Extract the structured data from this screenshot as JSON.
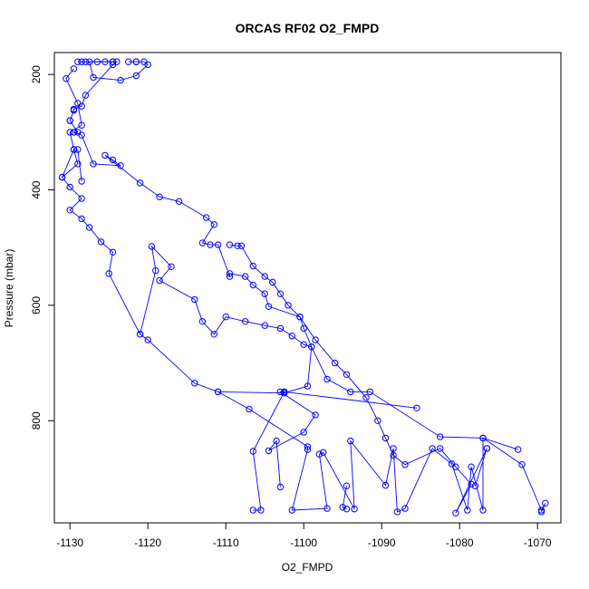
{
  "chart_data": {
    "type": "scatter",
    "title": "ORCAS RF02 O2_FMPD",
    "xlabel": "O2_FMPD",
    "ylabel": "Pressure (mbar)",
    "xlim": [
      -1132,
      -1067
    ],
    "ylim": [
      977,
      162
    ],
    "y_axis_inverted": true,
    "x_ticks": [
      -1130,
      -1120,
      -1110,
      -1100,
      -1090,
      -1080,
      -1070
    ],
    "y_ticks": [
      200,
      400,
      600,
      800
    ],
    "grid": false,
    "color": "#0000ff",
    "marker": "open-circle",
    "series": [
      {
        "values": [
          [
            -1129.5,
            190
          ],
          [
            -1130.5,
            207
          ],
          [
            -1129,
            250
          ],
          [
            -1128.5,
            288
          ],
          [
            -1130,
            300
          ],
          [
            -1129.5,
            330
          ],
          [
            -1129,
            355
          ],
          [
            -1131,
            378
          ],
          [
            -1130,
            395
          ],
          [
            -1128.5,
            415
          ],
          [
            -1130,
            435
          ],
          [
            -1128.5,
            450
          ],
          [
            -1127.5,
            465
          ],
          [
            -1126,
            490
          ],
          [
            -1124.5,
            508
          ],
          [
            -1125,
            545
          ],
          [
            -1121,
            650
          ],
          [
            -1120,
            660
          ],
          [
            -1114,
            735
          ],
          [
            -1111,
            750
          ],
          [
            -1107,
            780
          ],
          [
            -1099.5,
            845
          ],
          [
            -1099.5,
            850
          ],
          [
            -1101.5,
            955
          ],
          [
            -1097,
            952
          ],
          [
            -1098,
            858
          ],
          [
            -1097.5,
            855
          ],
          [
            -1093.5,
            953
          ],
          [
            -1094,
            835
          ],
          [
            -1089.5,
            912
          ],
          [
            -1088.5,
            848
          ],
          [
            -1088,
            958
          ],
          [
            -1087,
            952
          ],
          [
            -1083.5,
            848
          ],
          [
            -1081,
            875
          ],
          [
            -1079,
            955
          ],
          [
            -1078.5,
            880
          ],
          [
            -1077,
            955
          ],
          [
            -1077,
            830
          ],
          [
            -1072,
            876
          ],
          [
            -1069.5,
            955
          ],
          [
            -1069,
            943
          ],
          [
            -1069.5,
            958
          ]
        ]
      },
      {
        "values": [
          [
            -1072.5,
            850
          ],
          [
            -1077,
            830
          ],
          [
            -1082.5,
            828
          ],
          [
            -1091.5,
            750
          ],
          [
            -1094,
            750
          ],
          [
            -1097,
            728
          ],
          [
            -1099,
            672
          ],
          [
            -1100,
            668
          ],
          [
            -1101.5,
            653
          ],
          [
            -1103,
            640
          ],
          [
            -1105,
            635
          ],
          [
            -1107.5,
            628
          ],
          [
            -1110,
            620
          ],
          [
            -1111.5,
            650
          ],
          [
            -1113,
            628
          ],
          [
            -1114,
            590
          ],
          [
            -1118.5,
            557
          ],
          [
            -1117,
            533
          ],
          [
            -1119.5,
            498
          ],
          [
            -1119,
            540
          ],
          [
            -1121,
            650
          ]
        ]
      },
      {
        "values": [
          [
            -1106.5,
            955
          ],
          [
            -1105.5,
            955
          ],
          [
            -1106.5,
            853
          ],
          [
            -1102.5,
            750
          ],
          [
            -1103,
            750
          ],
          [
            -1098.5,
            790
          ],
          [
            -1100,
            820
          ],
          [
            -1104.5,
            852
          ],
          [
            -1103.5,
            835
          ],
          [
            -1103,
            915
          ]
        ]
      },
      {
        "values": [
          [
            -1130,
            280
          ],
          [
            -1129,
            300
          ],
          [
            -1129.5,
            300
          ],
          [
            -1128.5,
            305
          ],
          [
            -1127,
            355
          ],
          [
            -1123.5,
            358
          ],
          [
            -1124.5,
            348
          ],
          [
            -1125.5,
            340
          ],
          [
            -1121,
            388
          ],
          [
            -1118.5,
            412
          ],
          [
            -1116,
            420
          ],
          [
            -1112.5,
            448
          ],
          [
            -1111.5,
            460
          ],
          [
            -1113,
            492
          ],
          [
            -1112,
            495
          ],
          [
            -1111,
            495
          ],
          [
            -1109.5,
            550
          ],
          [
            -1109.5,
            545
          ],
          [
            -1107.5,
            550
          ],
          [
            -1106.5,
            565
          ],
          [
            -1105,
            580
          ],
          [
            -1104.5,
            602
          ],
          [
            -1100.5,
            620
          ],
          [
            -1100,
            640
          ],
          [
            -1099,
            672
          ],
          [
            -1099.5,
            740
          ],
          [
            -1102.5,
            752
          ],
          [
            -1111,
            750
          ]
        ]
      },
      {
        "values": [
          [
            -1109.5,
            495
          ],
          [
            -1108.5,
            497
          ],
          [
            -1108,
            497
          ],
          [
            -1106.5,
            532
          ],
          [
            -1105,
            550
          ],
          [
            -1104,
            560
          ],
          [
            -1103,
            580
          ],
          [
            -1102,
            600
          ],
          [
            -1100.5,
            620
          ],
          [
            -1098.5,
            660
          ],
          [
            -1096,
            700
          ],
          [
            -1094.5,
            720
          ],
          [
            -1092,
            760
          ],
          [
            -1090.5,
            800
          ],
          [
            -1089.5,
            830
          ],
          [
            -1088.5,
            860
          ],
          [
            -1087,
            876
          ],
          [
            -1082.5,
            848
          ],
          [
            -1080.5,
            880
          ],
          [
            -1078.5,
            910
          ],
          [
            -1080.5,
            960
          ],
          [
            -1076.5,
            848
          ]
        ]
      },
      {
        "values": [
          [
            -1122.5,
            178
          ],
          [
            -1121.5,
            178
          ],
          [
            -1121.5,
            178
          ],
          [
            -1120.5,
            178
          ],
          [
            -1120,
            183
          ],
          [
            -1121.5,
            202
          ],
          [
            -1123.5,
            210
          ],
          [
            -1127,
            205
          ],
          [
            -1127.5,
            178
          ],
          [
            -1126.5,
            178
          ],
          [
            -1125.5,
            178
          ],
          [
            -1124.5,
            178
          ],
          [
            -1124,
            178
          ],
          [
            -1124.5,
            183
          ],
          [
            -1128,
            236
          ],
          [
            -1128.5,
            255
          ],
          [
            -1129.5,
            260
          ],
          [
            -1129.5,
            262
          ],
          [
            -1130,
            280
          ]
        ]
      },
      {
        "values": [
          [
            -1128.5,
            178
          ],
          [
            -1129,
            178
          ],
          [
            -1128,
            178
          ],
          [
            -1124.5,
            178
          ]
        ]
      },
      {
        "values": [
          [
            -1131,
            378
          ],
          [
            -1129.5,
            330
          ]
        ]
      },
      {
        "values": [
          [
            -1094.5,
            913
          ],
          [
            -1095,
            950
          ],
          [
            -1094.5,
            953
          ]
        ]
      },
      {
        "values": [
          [
            -1078,
            913
          ],
          [
            -1076.5,
            848
          ]
        ]
      },
      {
        "values": [
          [
            -1085.5,
            778
          ],
          [
            -1102.5,
            750
          ]
        ]
      },
      {
        "values": [
          [
            -1128.5,
            385
          ],
          [
            -1129,
            330
          ]
        ]
      }
    ]
  }
}
